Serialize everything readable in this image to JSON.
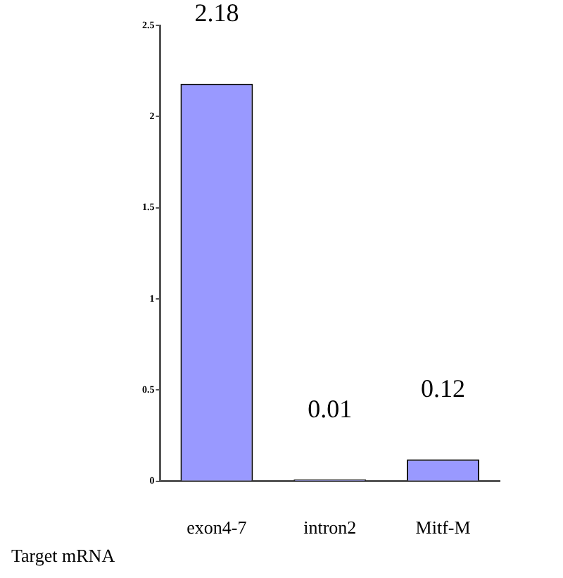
{
  "chart_data": {
    "type": "bar",
    "xlabel": "Target mRNA",
    "categories": [
      "exon4-7",
      "intron2",
      "Mitf-M"
    ],
    "values": [
      2.18,
      0.01,
      0.12
    ],
    "color": "#9999ff",
    "ylim": [
      0,
      2.5
    ],
    "yticks": [
      0,
      0.5,
      1,
      1.5,
      2,
      2.5
    ],
    "grid": false,
    "data_labels": true
  }
}
